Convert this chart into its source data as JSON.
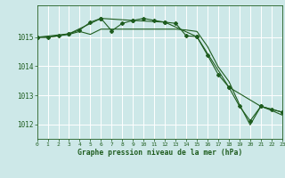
{
  "background_color": "#cde8e8",
  "grid_color": "#ffffff",
  "line_color": "#1e5c1e",
  "xlim": [
    0,
    23
  ],
  "ylim": [
    1011.5,
    1016.1
  ],
  "yticks": [
    1012,
    1013,
    1014,
    1015
  ],
  "xticks": [
    0,
    1,
    2,
    3,
    4,
    5,
    6,
    7,
    8,
    9,
    10,
    11,
    12,
    13,
    14,
    15,
    16,
    17,
    18,
    19,
    20,
    21,
    22,
    23
  ],
  "title": "Graphe pression niveau de la mer (hPa)",
  "s1_x": [
    0,
    1,
    2,
    3,
    4,
    5,
    6,
    7,
    8,
    9,
    10,
    11,
    12,
    13,
    14,
    15,
    16,
    17,
    18,
    19,
    20,
    21,
    22,
    23
  ],
  "s1_y": [
    1015.0,
    1015.0,
    1015.05,
    1015.12,
    1015.25,
    1015.52,
    1015.65,
    1015.22,
    1015.48,
    1015.58,
    1015.65,
    1015.58,
    1015.52,
    1015.48,
    1015.05,
    1015.02,
    1014.38,
    1013.72,
    1013.28,
    1012.62,
    1012.12,
    1012.62,
    1012.52,
    1012.42
  ],
  "s2_x": [
    0,
    1,
    2,
    3,
    4,
    5,
    6,
    7,
    8,
    9,
    10,
    11,
    12,
    13,
    14,
    15,
    16,
    17,
    18,
    19,
    20,
    21,
    22,
    23
  ],
  "s2_y": [
    1015.0,
    1015.0,
    1015.05,
    1015.1,
    1015.2,
    1015.1,
    1015.28,
    1015.28,
    1015.28,
    1015.28,
    1015.28,
    1015.28,
    1015.28,
    1015.28,
    1015.25,
    1015.2,
    1014.68,
    1013.98,
    1013.48,
    1012.68,
    1011.98,
    1012.62,
    1012.48,
    1012.32
  ],
  "s3_x": [
    0,
    3,
    6,
    9,
    12,
    15,
    18,
    21,
    23
  ],
  "s3_y": [
    1015.0,
    1015.12,
    1015.65,
    1015.58,
    1015.52,
    1015.02,
    1013.28,
    1012.62,
    1012.42
  ],
  "figsize": [
    3.2,
    2.0
  ],
  "dpi": 100
}
